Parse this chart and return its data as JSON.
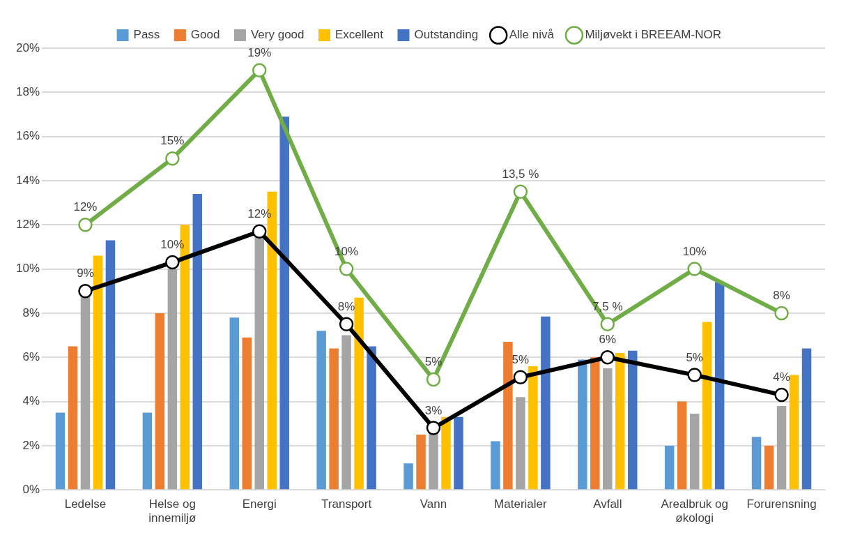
{
  "chart_data": {
    "type": "bar",
    "categories": [
      "Ledelse",
      "Helse og innemiljø",
      "Energi",
      "Transport",
      "Vann",
      "Materialer",
      "Avfall",
      "Arealbruk og økologi",
      "Forurensning"
    ],
    "series": [
      {
        "name": "Pass",
        "color": "#5b9bd5",
        "values": [
          3.5,
          3.5,
          7.8,
          7.2,
          1.2,
          2.2,
          5.9,
          2.0,
          2.4
        ]
      },
      {
        "name": "Good",
        "color": "#ed7d31",
        "values": [
          6.5,
          8.0,
          6.9,
          6.4,
          2.5,
          6.7,
          6.0,
          4.0,
          2.0
        ]
      },
      {
        "name": "Very good",
        "color": "#a5a5a5",
        "values": [
          8.8,
          10.0,
          11.5,
          7.0,
          2.6,
          4.2,
          5.5,
          3.45,
          3.8
        ]
      },
      {
        "name": "Excellent",
        "color": "#ffc000",
        "values": [
          10.6,
          12.0,
          13.5,
          8.7,
          3.3,
          5.6,
          6.2,
          7.6,
          5.2
        ]
      },
      {
        "name": "Outstanding",
        "color": "#4472c4",
        "values": [
          11.3,
          13.4,
          16.9,
          6.5,
          3.3,
          7.85,
          6.3,
          9.4,
          6.4
        ]
      },
      {
        "name": "Alle nivå",
        "type": "line",
        "color": "#000000",
        "values": [
          9.0,
          10.3,
          11.7,
          7.5,
          2.8,
          5.1,
          6.0,
          5.2,
          4.3
        ],
        "value_labels": [
          "9%",
          "10%",
          "12%",
          "8%",
          "3%",
          "5%",
          "6%",
          "5%",
          "4%"
        ]
      },
      {
        "name": "Miljøvekt i BREEAM-NOR",
        "type": "line",
        "color": "#70ad47",
        "values": [
          12,
          15,
          19,
          10,
          5,
          13.5,
          7.5,
          10,
          8
        ],
        "value_labels": [
          "12%",
          "15%",
          "19%",
          "10%",
          "5%",
          "13,5 %",
          "7,5 %",
          "10%",
          "8%"
        ]
      }
    ],
    "ylim": [
      0,
      20
    ],
    "yticks": [
      {
        "value": 0,
        "label": "0%"
      },
      {
        "value": 2,
        "label": "2%"
      },
      {
        "value": 4,
        "label": "4%"
      },
      {
        "value": 6,
        "label": "6%"
      },
      {
        "value": 8,
        "label": "8%"
      },
      {
        "value": 10,
        "label": "10%"
      },
      {
        "value": 12,
        "label": "12%"
      },
      {
        "value": 14,
        "label": "14%"
      },
      {
        "value": 16,
        "label": "16%"
      },
      {
        "value": 18,
        "label": "18%"
      },
      {
        "value": 20,
        "label": "20%"
      }
    ],
    "grid": "y",
    "legend": "top",
    "marker": "circle",
    "line_style": "solid"
  }
}
